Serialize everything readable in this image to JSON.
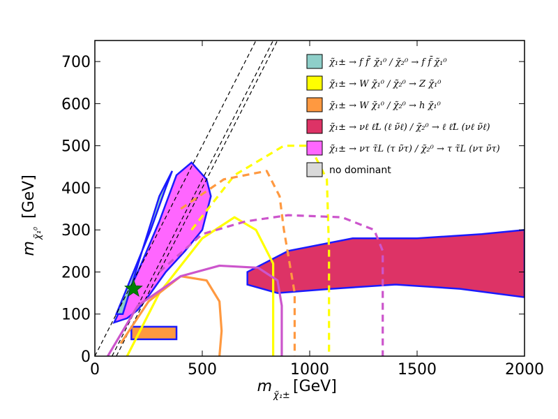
{
  "chart_data": {
    "type": "scatter",
    "xlabel_main": "m",
    "xlabel_sub": "χ̃₁±",
    "xlabel_unit": "[GeV]",
    "ylabel_main": "m",
    "ylabel_sub": "χ̃₁⁰",
    "ylabel_unit": "[GeV]",
    "xlim": [
      0,
      2000
    ],
    "ylim": [
      0,
      750
    ],
    "xticks": [
      0,
      500,
      1000,
      1500,
      2000
    ],
    "yticks": [
      0,
      100,
      200,
      300,
      400,
      500,
      600,
      700
    ],
    "xtick_labels": [
      "0",
      "500",
      "1000",
      "1500",
      "2000"
    ],
    "ytick_labels": [
      "0",
      "100",
      "200",
      "300",
      "400",
      "500",
      "600",
      "700"
    ],
    "legend": [
      {
        "label": "χ̃₁± → f f̄′ χ̃₁⁰ / χ̃₂⁰ → f f̄ χ̃₁⁰",
        "color": "#8ecfc9"
      },
      {
        "label": "χ̃₁± → W χ̃₁⁰ / χ̃₂⁰ → Z χ̃₁⁰",
        "color": "#ffff00"
      },
      {
        "label": "χ̃₁± → W χ̃₁⁰ / χ̃₂⁰ → h χ̃₁⁰",
        "color": "#ff9940"
      },
      {
        "label": "χ̃₁± → νℓ ℓ̃L (ℓ ν̃ℓ) / χ̃₂⁰ → ℓ ℓ̃L (νℓ ν̃ℓ)",
        "color": "#dd3366"
      },
      {
        "label": "χ̃₁± → ντ τ̃L (τ ν̃τ) / χ̃₂⁰ → τ τ̃L (ντ ν̃τ)",
        "color": "#ff66ff"
      },
      {
        "label": "no dominant",
        "color": "#d9d9d9"
      }
    ],
    "benchmark_point": {
      "x": 180,
      "y": 160,
      "marker": "star",
      "color": "#008000"
    },
    "diagonal_lines": [
      {
        "name": "m_chi1pm = m_chi10",
        "x": [
          0,
          750
        ],
        "y": [
          0,
          750
        ]
      },
      {
        "name": "m_chi1pm = m_chi10 + mW",
        "x": [
          80,
          830
        ],
        "y": [
          0,
          750
        ]
      },
      {
        "name": "m_chi1pm = m_chi10 + mZ",
        "x": [
          100,
          850
        ],
        "y": [
          0,
          750
        ]
      }
    ],
    "series": [
      {
        "name": "cyan-region",
        "color": "#8ecfc9",
        "x": [
          100,
          180,
          260,
          330,
          360,
          300,
          220,
          130
        ],
        "y": [
          100,
          200,
          300,
          400,
          440,
          380,
          250,
          100
        ]
      },
      {
        "name": "magenta-region",
        "color": "#ff66ff",
        "x": [
          90,
          200,
          300,
          380,
          450,
          520,
          540,
          500,
          420,
          330,
          260,
          200,
          150
        ],
        "y": [
          80,
          200,
          320,
          430,
          460,
          420,
          380,
          300,
          250,
          200,
          150,
          110,
          90
        ]
      },
      {
        "name": "red-band",
        "color": "#dd3366",
        "x": [
          710,
          900,
          1200,
          1500,
          1800,
          2000,
          2000,
          1700,
          1400,
          1100,
          850,
          710
        ],
        "y": [
          200,
          250,
          280,
          280,
          290,
          300,
          140,
          160,
          170,
          160,
          150,
          170
        ]
      },
      {
        "name": "orange-low-box",
        "color": "#ff9940",
        "x": [
          170,
          380,
          380,
          170
        ],
        "y": [
          40,
          40,
          70,
          70
        ]
      },
      {
        "name": "yellow-solid-contour",
        "color": "#ffff00",
        "x": [
          150,
          300,
          500,
          650,
          750,
          830,
          830
        ],
        "y": [
          0,
          150,
          280,
          330,
          300,
          220,
          0
        ]
      },
      {
        "name": "orange-solid-contour",
        "color": "#ff9940",
        "x": [
          120,
          250,
          400,
          520,
          580,
          590,
          580
        ],
        "y": [
          30,
          130,
          190,
          180,
          130,
          60,
          0
        ]
      },
      {
        "name": "violet-solid-contour",
        "color": "#cc55cc",
        "x": [
          60,
          200,
          400,
          580,
          760,
          850,
          870,
          870
        ],
        "y": [
          0,
          120,
          190,
          215,
          210,
          180,
          120,
          0
        ]
      },
      {
        "name": "yellow-dashed-contour",
        "color": "#ffff00",
        "x": [
          450,
          650,
          880,
          1000,
          1080,
          1090,
          1090
        ],
        "y": [
          300,
          430,
          500,
          500,
          420,
          250,
          0
        ]
      },
      {
        "name": "orange-dashed-contour",
        "color": "#ff9940",
        "x": [
          400,
          600,
          800,
          860,
          880,
          930,
          930
        ],
        "y": [
          350,
          420,
          440,
          380,
          300,
          150,
          0
        ]
      },
      {
        "name": "violet-dashed-contour",
        "color": "#cc55cc",
        "x": [
          300,
          500,
          700,
          900,
          1150,
          1300,
          1340,
          1340
        ],
        "y": [
          200,
          290,
          320,
          335,
          330,
          300,
          250,
          0
        ]
      }
    ]
  }
}
